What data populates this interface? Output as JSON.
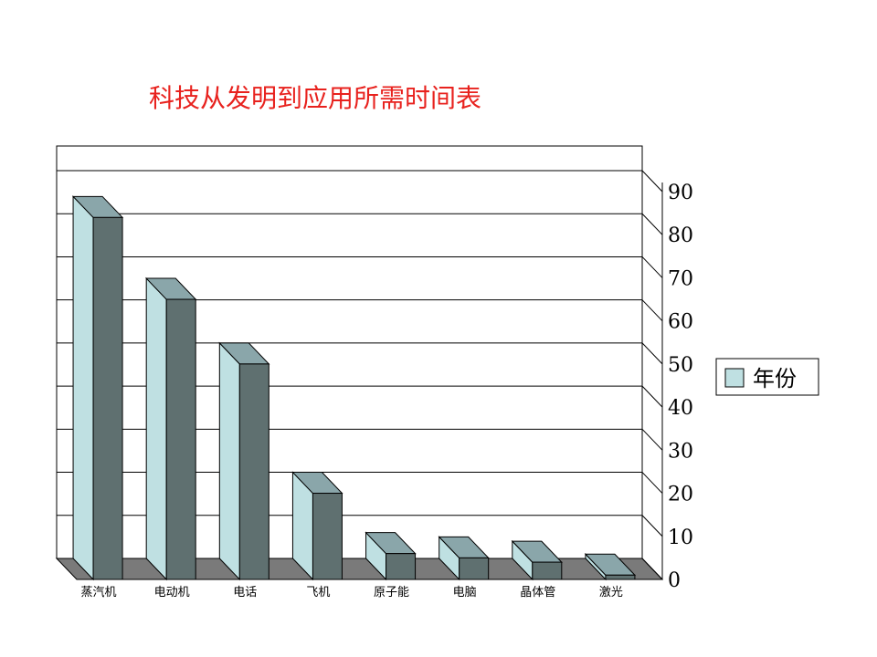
{
  "chart_data": {
    "type": "bar",
    "title": "科技从发明到应用所需时间表",
    "categories": [
      "蒸汽机",
      "电动机",
      "电话",
      "飞机",
      "原子能",
      "电脑",
      "晶体管",
      "激光"
    ],
    "series": [
      {
        "name": "年份",
        "values": [
          84,
          65,
          50,
          20,
          6,
          5,
          4,
          1
        ]
      }
    ],
    "ylim": [
      0,
      90
    ],
    "yticks": [
      "0",
      "10",
      "20",
      "30",
      "40",
      "50",
      "60",
      "70",
      "80",
      "90"
    ],
    "grid": true,
    "legend": "right",
    "colors": {
      "bar_front": "#5f7070",
      "bar_side": "#bfe0e2",
      "bar_top": "#8aa6aa",
      "floor": "#7a7a7a",
      "title": "#e8221e"
    }
  }
}
